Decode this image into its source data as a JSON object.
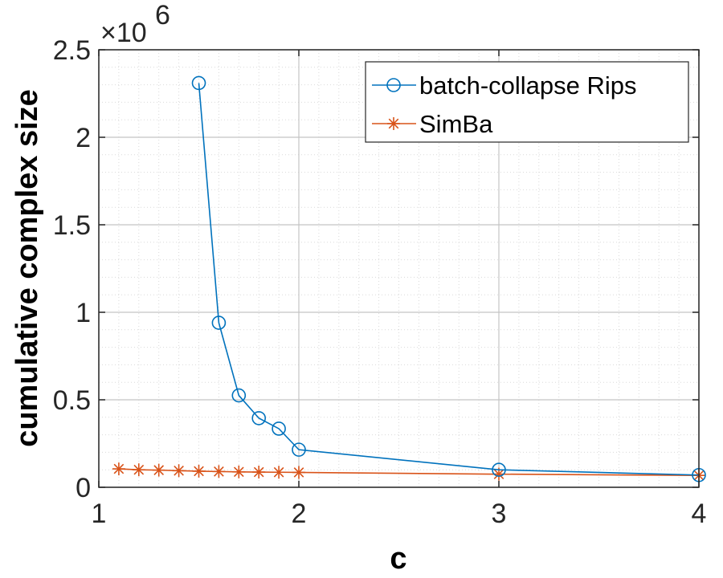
{
  "chart_data": {
    "type": "line",
    "xlabel": "c",
    "ylabel": "cumulative complex size",
    "y_multiplier": {
      "base": "×10",
      "exponent": "6"
    },
    "xlim": [
      1,
      4
    ],
    "ylim": [
      0,
      2.5
    ],
    "x_ticks": [
      "1",
      "2",
      "3",
      "4"
    ],
    "y_ticks": [
      "0",
      "0.5",
      "1",
      "1.5",
      "2",
      "2.5"
    ],
    "x_tick_values": [
      1,
      2,
      3,
      4
    ],
    "y_tick_values": [
      0,
      0.5,
      1,
      1.5,
      2,
      2.5
    ],
    "grid": "major and minor (dotted)",
    "legend_position": "top-right",
    "series": [
      {
        "name": "batch-collapse Rips",
        "color": "#0072BD",
        "marker": "circle",
        "x": [
          1.5,
          1.6,
          1.7,
          1.8,
          1.9,
          2,
          3,
          4
        ],
        "y": [
          2.31,
          0.94,
          0.525,
          0.395,
          0.335,
          0.215,
          0.1,
          0.07
        ]
      },
      {
        "name": "SimBa",
        "color": "#D95319",
        "marker": "asterisk",
        "x": [
          1.1,
          1.2,
          1.3,
          1.4,
          1.5,
          1.6,
          1.7,
          1.8,
          1.9,
          2,
          3,
          4
        ],
        "y": [
          0.105,
          0.1,
          0.098,
          0.095,
          0.092,
          0.09,
          0.088,
          0.087,
          0.086,
          0.085,
          0.075,
          0.068
        ]
      }
    ]
  }
}
